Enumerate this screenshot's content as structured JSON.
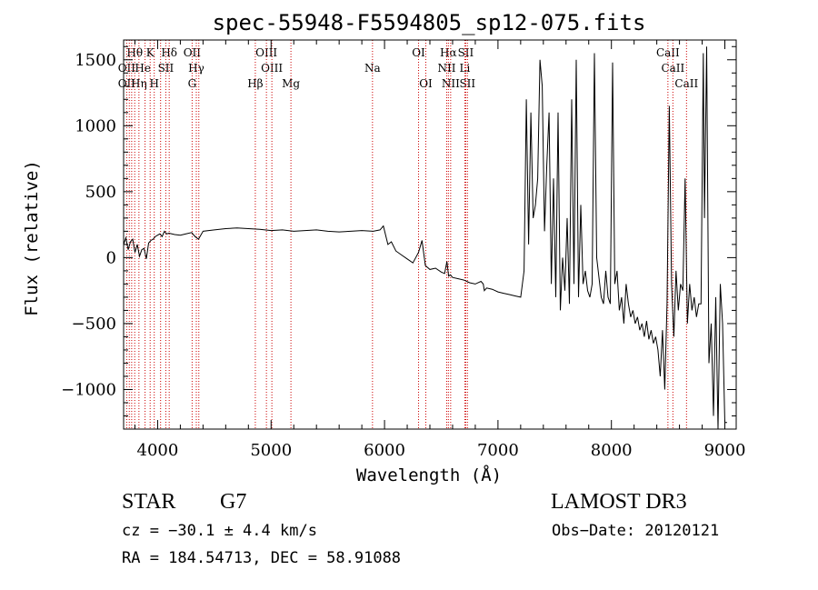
{
  "chart_data": {
    "type": "line",
    "title": "spec-55948-F5594805_sp12-075.fits",
    "xlabel": "Wavelength (Å)",
    "ylabel": "Flux (relative)",
    "xlim": [
      3700,
      9100
    ],
    "ylim": [
      -1300,
      1650
    ],
    "xticks": [
      4000,
      5000,
      6000,
      7000,
      8000,
      9000
    ],
    "xtick_labels": [
      "4000",
      "5000",
      "6000",
      "7000",
      "8000",
      "9000"
    ],
    "yticks": [
      -1000,
      -500,
      0,
      500,
      1000,
      1500
    ],
    "ytick_labels": [
      "−1000",
      "−500",
      "0",
      "500",
      "1000",
      "1500"
    ],
    "grid": false,
    "series": [
      {
        "name": "flux",
        "x": [
          3700,
          3720,
          3740,
          3760,
          3780,
          3800,
          3820,
          3840,
          3860,
          3880,
          3900,
          3920,
          3940,
          3960,
          3980,
          4000,
          4020,
          4040,
          4060,
          4080,
          4100,
          4150,
          4200,
          4250,
          4300,
          4330,
          4360,
          4400,
          4500,
          4600,
          4700,
          4800,
          4900,
          5000,
          5100,
          5200,
          5300,
          5400,
          5500,
          5600,
          5700,
          5800,
          5900,
          5960,
          5990,
          6010,
          6030,
          6060,
          6100,
          6150,
          6200,
          6250,
          6300,
          6330,
          6360,
          6400,
          6450,
          6500,
          6530,
          6550,
          6565,
          6580,
          6600,
          6650,
          6700,
          6750,
          6800,
          6850,
          6870,
          6880,
          6900,
          6950,
          7000,
          7050,
          7100,
          7150,
          7200,
          7230,
          7250,
          7270,
          7290,
          7310,
          7330,
          7350,
          7370,
          7390,
          7410,
          7430,
          7450,
          7470,
          7490,
          7510,
          7530,
          7550,
          7570,
          7590,
          7610,
          7630,
          7650,
          7670,
          7690,
          7710,
          7730,
          7750,
          7770,
          7790,
          7810,
          7830,
          7850,
          7870,
          7890,
          7910,
          7930,
          7950,
          7970,
          7990,
          8010,
          8030,
          8050,
          8070,
          8090,
          8110,
          8130,
          8150,
          8170,
          8190,
          8210,
          8230,
          8250,
          8270,
          8290,
          8310,
          8330,
          8350,
          8370,
          8390,
          8410,
          8430,
          8450,
          8470,
          8490,
          8510,
          8530,
          8550,
          8570,
          8590,
          8610,
          8630,
          8650,
          8670,
          8690,
          8710,
          8730,
          8750,
          8770,
          8790,
          8810,
          8820,
          8840,
          8860,
          8880,
          8900,
          8920,
          8940,
          8960,
          8980,
          9000,
          9020
        ],
        "y": [
          100,
          150,
          60,
          120,
          140,
          40,
          100,
          10,
          60,
          70,
          -10,
          110,
          130,
          140,
          160,
          170,
          180,
          160,
          200,
          180,
          185,
          175,
          170,
          180,
          190,
          160,
          140,
          200,
          210,
          220,
          225,
          220,
          215,
          205,
          210,
          200,
          205,
          210,
          200,
          195,
          200,
          205,
          200,
          210,
          240,
          170,
          100,
          120,
          50,
          20,
          -10,
          -40,
          40,
          130,
          -60,
          -90,
          -80,
          -110,
          -120,
          -30,
          -140,
          -130,
          -150,
          -160,
          -170,
          -190,
          -200,
          -180,
          -200,
          -250,
          -230,
          -240,
          -260,
          -270,
          -280,
          -290,
          -300,
          -100,
          1200,
          100,
          1100,
          300,
          400,
          600,
          1500,
          1300,
          200,
          700,
          1100,
          -200,
          600,
          -300,
          1100,
          -400,
          0,
          -250,
          300,
          -350,
          1200,
          -200,
          1500,
          -300,
          400,
          -200,
          -100,
          -250,
          -300,
          -200,
          1550,
          0,
          -150,
          -300,
          -350,
          -100,
          -300,
          -350,
          1480,
          -200,
          -100,
          -400,
          -300,
          -500,
          -200,
          -350,
          -450,
          -400,
          -500,
          -450,
          -550,
          -500,
          -600,
          -480,
          -620,
          -550,
          -650,
          -600,
          -700,
          -900,
          -550,
          -1000,
          -350,
          1150,
          -200,
          -600,
          -100,
          -400,
          -200,
          -250,
          600,
          -500,
          -200,
          -400,
          -300,
          -450,
          -350,
          -350,
          1550,
          300,
          1600,
          -800,
          -500,
          -1200,
          -300,
          -1300,
          -200,
          -500,
          -1250,
          -1250
        ],
        "color": "#000000"
      }
    ],
    "lines": [
      {
        "x": 3727,
        "color": "#cc0000"
      },
      {
        "x": 3750,
        "color": "#cc0000"
      },
      {
        "x": 3771,
        "color": "#cc0000"
      },
      {
        "x": 3798,
        "color": "#cc0000"
      },
      {
        "x": 3835,
        "color": "#cc0000"
      },
      {
        "x": 3889,
        "color": "#cc0000"
      },
      {
        "x": 3934,
        "color": "#cc0000"
      },
      {
        "x": 3970,
        "color": "#cc0000"
      },
      {
        "x": 4026,
        "color": "#cc0000"
      },
      {
        "x": 4072,
        "color": "#cc0000"
      },
      {
        "x": 4102,
        "color": "#cc0000"
      },
      {
        "x": 4304,
        "color": "#cc0000"
      },
      {
        "x": 4341,
        "color": "#cc0000"
      },
      {
        "x": 4363,
        "color": "#cc0000"
      },
      {
        "x": 4861,
        "color": "#cc0000"
      },
      {
        "x": 4959,
        "color": "#cc0000"
      },
      {
        "x": 5007,
        "color": "#cc0000"
      },
      {
        "x": 5175,
        "color": "#cc0000"
      },
      {
        "x": 5894,
        "color": "#cc0000"
      },
      {
        "x": 6300,
        "color": "#cc0000"
      },
      {
        "x": 6364,
        "color": "#cc0000"
      },
      {
        "x": 6548,
        "color": "#cc0000"
      },
      {
        "x": 6563,
        "color": "#cc0000"
      },
      {
        "x": 6583,
        "color": "#cc0000"
      },
      {
        "x": 6708,
        "color": "#cc0000"
      },
      {
        "x": 6716,
        "color": "#cc0000"
      },
      {
        "x": 6731,
        "color": "#cc0000"
      },
      {
        "x": 8498,
        "color": "#cc0000"
      },
      {
        "x": 8542,
        "color": "#cc0000"
      },
      {
        "x": 8662,
        "color": "#cc0000"
      }
    ],
    "annotations": [
      {
        "text": "Hθ",
        "x": 3798,
        "row": 0
      },
      {
        "text": "K",
        "x": 3934,
        "row": 0
      },
      {
        "text": "Hδ",
        "x": 4102,
        "row": 0
      },
      {
        "text": "OII",
        "x": 4304,
        "row": 0
      },
      {
        "text": "OIII",
        "x": 4959,
        "row": 0
      },
      {
        "text": "OI",
        "x": 6300,
        "row": 0
      },
      {
        "text": "Hα",
        "x": 6563,
        "row": 0
      },
      {
        "text": "SII",
        "x": 6716,
        "row": 0
      },
      {
        "text": "CaII",
        "x": 8498,
        "row": 0
      },
      {
        "text": "OII",
        "x": 3727,
        "row": 1
      },
      {
        "text": "He",
        "x": 3870,
        "row": 1
      },
      {
        "text": "SII",
        "x": 4072,
        "row": 1
      },
      {
        "text": "Hγ",
        "x": 4341,
        "row": 1
      },
      {
        "text": "OIII",
        "x": 5007,
        "row": 1
      },
      {
        "text": "Na",
        "x": 5894,
        "row": 1
      },
      {
        "text": "NII",
        "x": 6548,
        "row": 1
      },
      {
        "text": "Li",
        "x": 6708,
        "row": 1
      },
      {
        "text": "CaII",
        "x": 8542,
        "row": 1
      },
      {
        "text": "OII",
        "x": 3727,
        "row": 2
      },
      {
        "text": "Hη",
        "x": 3835,
        "row": 2
      },
      {
        "text": "H",
        "x": 3970,
        "row": 2
      },
      {
        "text": "G",
        "x": 4304,
        "row": 2
      },
      {
        "text": "Hβ",
        "x": 4861,
        "row": 2
      },
      {
        "text": "Mg",
        "x": 5175,
        "row": 2
      },
      {
        "text": "OI",
        "x": 6364,
        "row": 2
      },
      {
        "text": "NII",
        "x": 6583,
        "row": 2
      },
      {
        "text": "SII",
        "x": 6731,
        "row": 2
      },
      {
        "text": "CaII",
        "x": 8662,
        "row": 2
      }
    ]
  },
  "footer": {
    "object_class": "STAR",
    "subclass": "G7",
    "survey": "LAMOST DR3",
    "cz": "cz = −30.1 ± 4.4 km/s",
    "obs_date": "Obs−Date: 20120121",
    "coords": "RA = 184.54713, DEC =  58.91088"
  }
}
